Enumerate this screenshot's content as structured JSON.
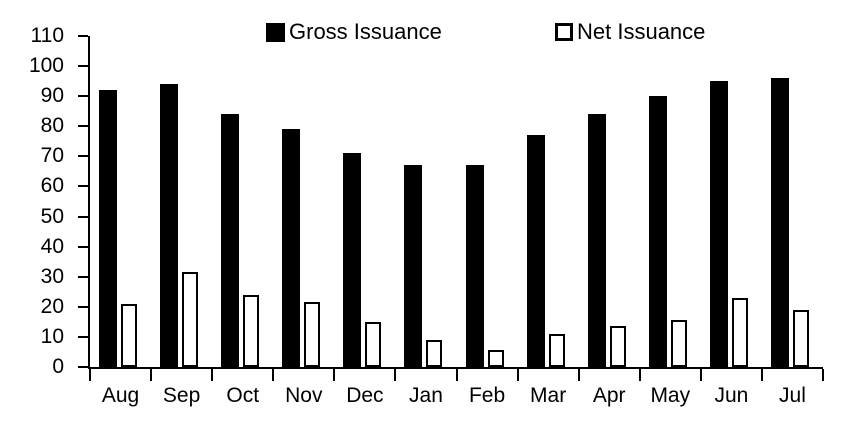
{
  "chart_data": {
    "type": "bar",
    "title": "",
    "xlabel": "",
    "ylabel": "",
    "categories": [
      "Aug",
      "Sep",
      "Oct",
      "Nov",
      "Dec",
      "Jan",
      "Feb",
      "Mar",
      "Apr",
      "May",
      "Jun",
      "Jul"
    ],
    "series": [
      {
        "name": "Gross Issuance",
        "values": [
          92,
          94,
          84,
          79,
          71,
          67,
          67,
          77,
          84,
          90,
          95,
          96
        ],
        "fill": "#000000",
        "stroke": "#000000"
      },
      {
        "name": "Net Issuance",
        "values": [
          21,
          31.5,
          24,
          21.5,
          15,
          9,
          5.5,
          11,
          13.5,
          15.5,
          23,
          19
        ],
        "fill": "#ffffff",
        "stroke": "#000000"
      }
    ],
    "ylim": [
      0,
      110
    ],
    "yticks": [
      0,
      10,
      20,
      30,
      40,
      50,
      60,
      70,
      80,
      90,
      100,
      110
    ],
    "grid": false,
    "legend_position": "top",
    "axis_color": "#000000",
    "background_color": "#ffffff"
  }
}
